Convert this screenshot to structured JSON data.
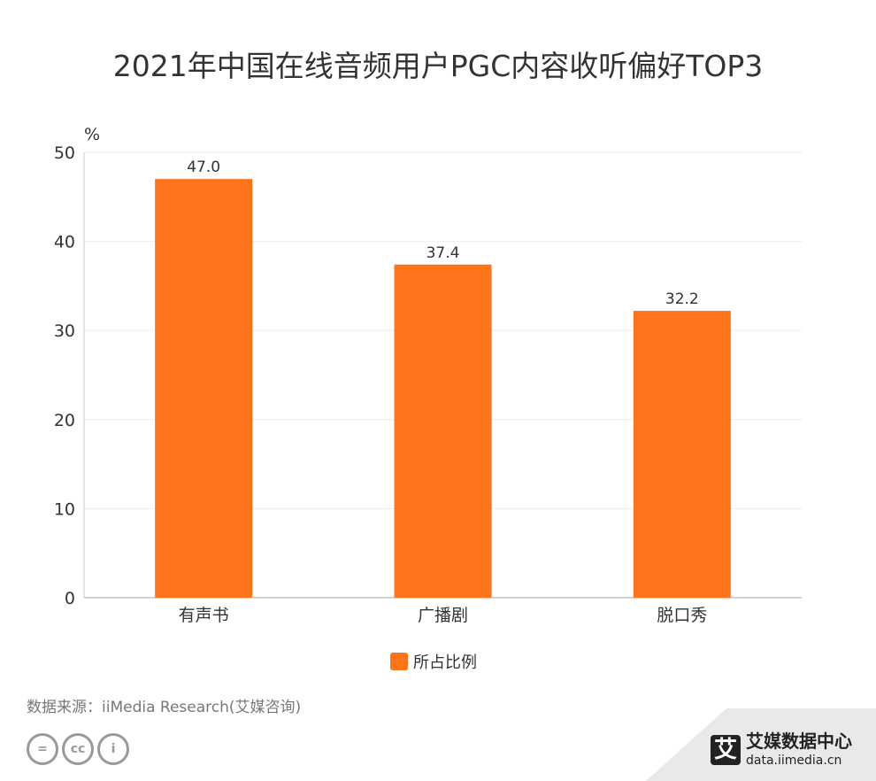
{
  "chart_data": {
    "type": "bar",
    "title": "2021年中国在线音频用户PGC内容收听偏好TOP3",
    "ylabel": "%",
    "categories": [
      "有声书",
      "广播剧",
      "脱口秀"
    ],
    "series": [
      {
        "name": "所占比例",
        "values": [
          47.0,
          37.4,
          32.2
        ],
        "color": "#ff7419"
      }
    ],
    "ylim": [
      0,
      50
    ],
    "yticks": [
      0,
      10,
      20,
      30,
      40,
      50
    ],
    "grid": true,
    "legend": "bottom"
  },
  "source": "数据来源：iiMedia Research(艾媒咨询)",
  "watermark": {
    "logo_char": "艾",
    "name": "艾媒数据中心",
    "url": "data.iimedia.cn"
  },
  "license_icons": [
    "cc-nd-icon",
    "cc-icon",
    "cc-by-icon"
  ]
}
